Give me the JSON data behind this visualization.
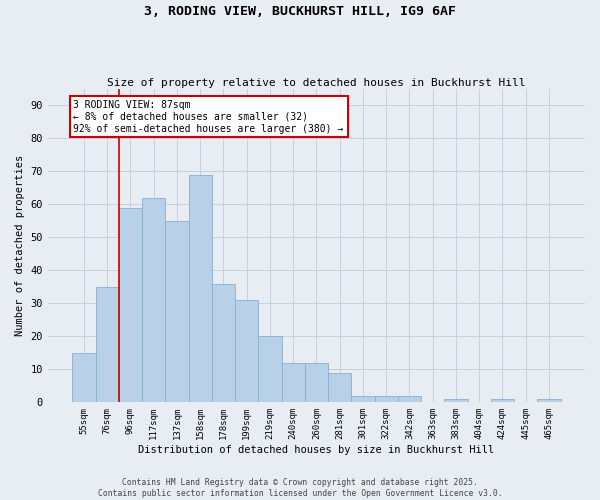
{
  "title1": "3, RODING VIEW, BUCKHURST HILL, IG9 6AF",
  "title2": "Size of property relative to detached houses in Buckhurst Hill",
  "xlabel": "Distribution of detached houses by size in Buckhurst Hill",
  "ylabel": "Number of detached properties",
  "categories": [
    "55sqm",
    "76sqm",
    "96sqm",
    "117sqm",
    "137sqm",
    "158sqm",
    "178sqm",
    "199sqm",
    "219sqm",
    "240sqm",
    "260sqm",
    "281sqm",
    "301sqm",
    "322sqm",
    "342sqm",
    "363sqm",
    "383sqm",
    "404sqm",
    "424sqm",
    "445sqm",
    "465sqm"
  ],
  "values": [
    15,
    35,
    59,
    62,
    55,
    69,
    36,
    31,
    20,
    12,
    12,
    9,
    2,
    2,
    2,
    0,
    1,
    0,
    1,
    0,
    1
  ],
  "bar_color": "#b8d0e8",
  "bar_edge_color": "#8ab0d0",
  "red_line_category_index": 2,
  "annotation_line1": "3 RODING VIEW: 87sqm",
  "annotation_line2": "← 8% of detached houses are smaller (32)",
  "annotation_line3": "92% of semi-detached houses are larger (380) →",
  "annotation_box_color": "#ffffff",
  "annotation_box_edge_color": "#cc0000",
  "red_line_color": "#cc0000",
  "grid_color": "#c8d0dc",
  "background_color": "#e8edf4",
  "ylim": [
    0,
    95
  ],
  "yticks": [
    0,
    10,
    20,
    30,
    40,
    50,
    60,
    70,
    80,
    90
  ],
  "footnote_line1": "Contains HM Land Registry data © Crown copyright and database right 2025.",
  "footnote_line2": "Contains public sector information licensed under the Open Government Licence v3.0."
}
